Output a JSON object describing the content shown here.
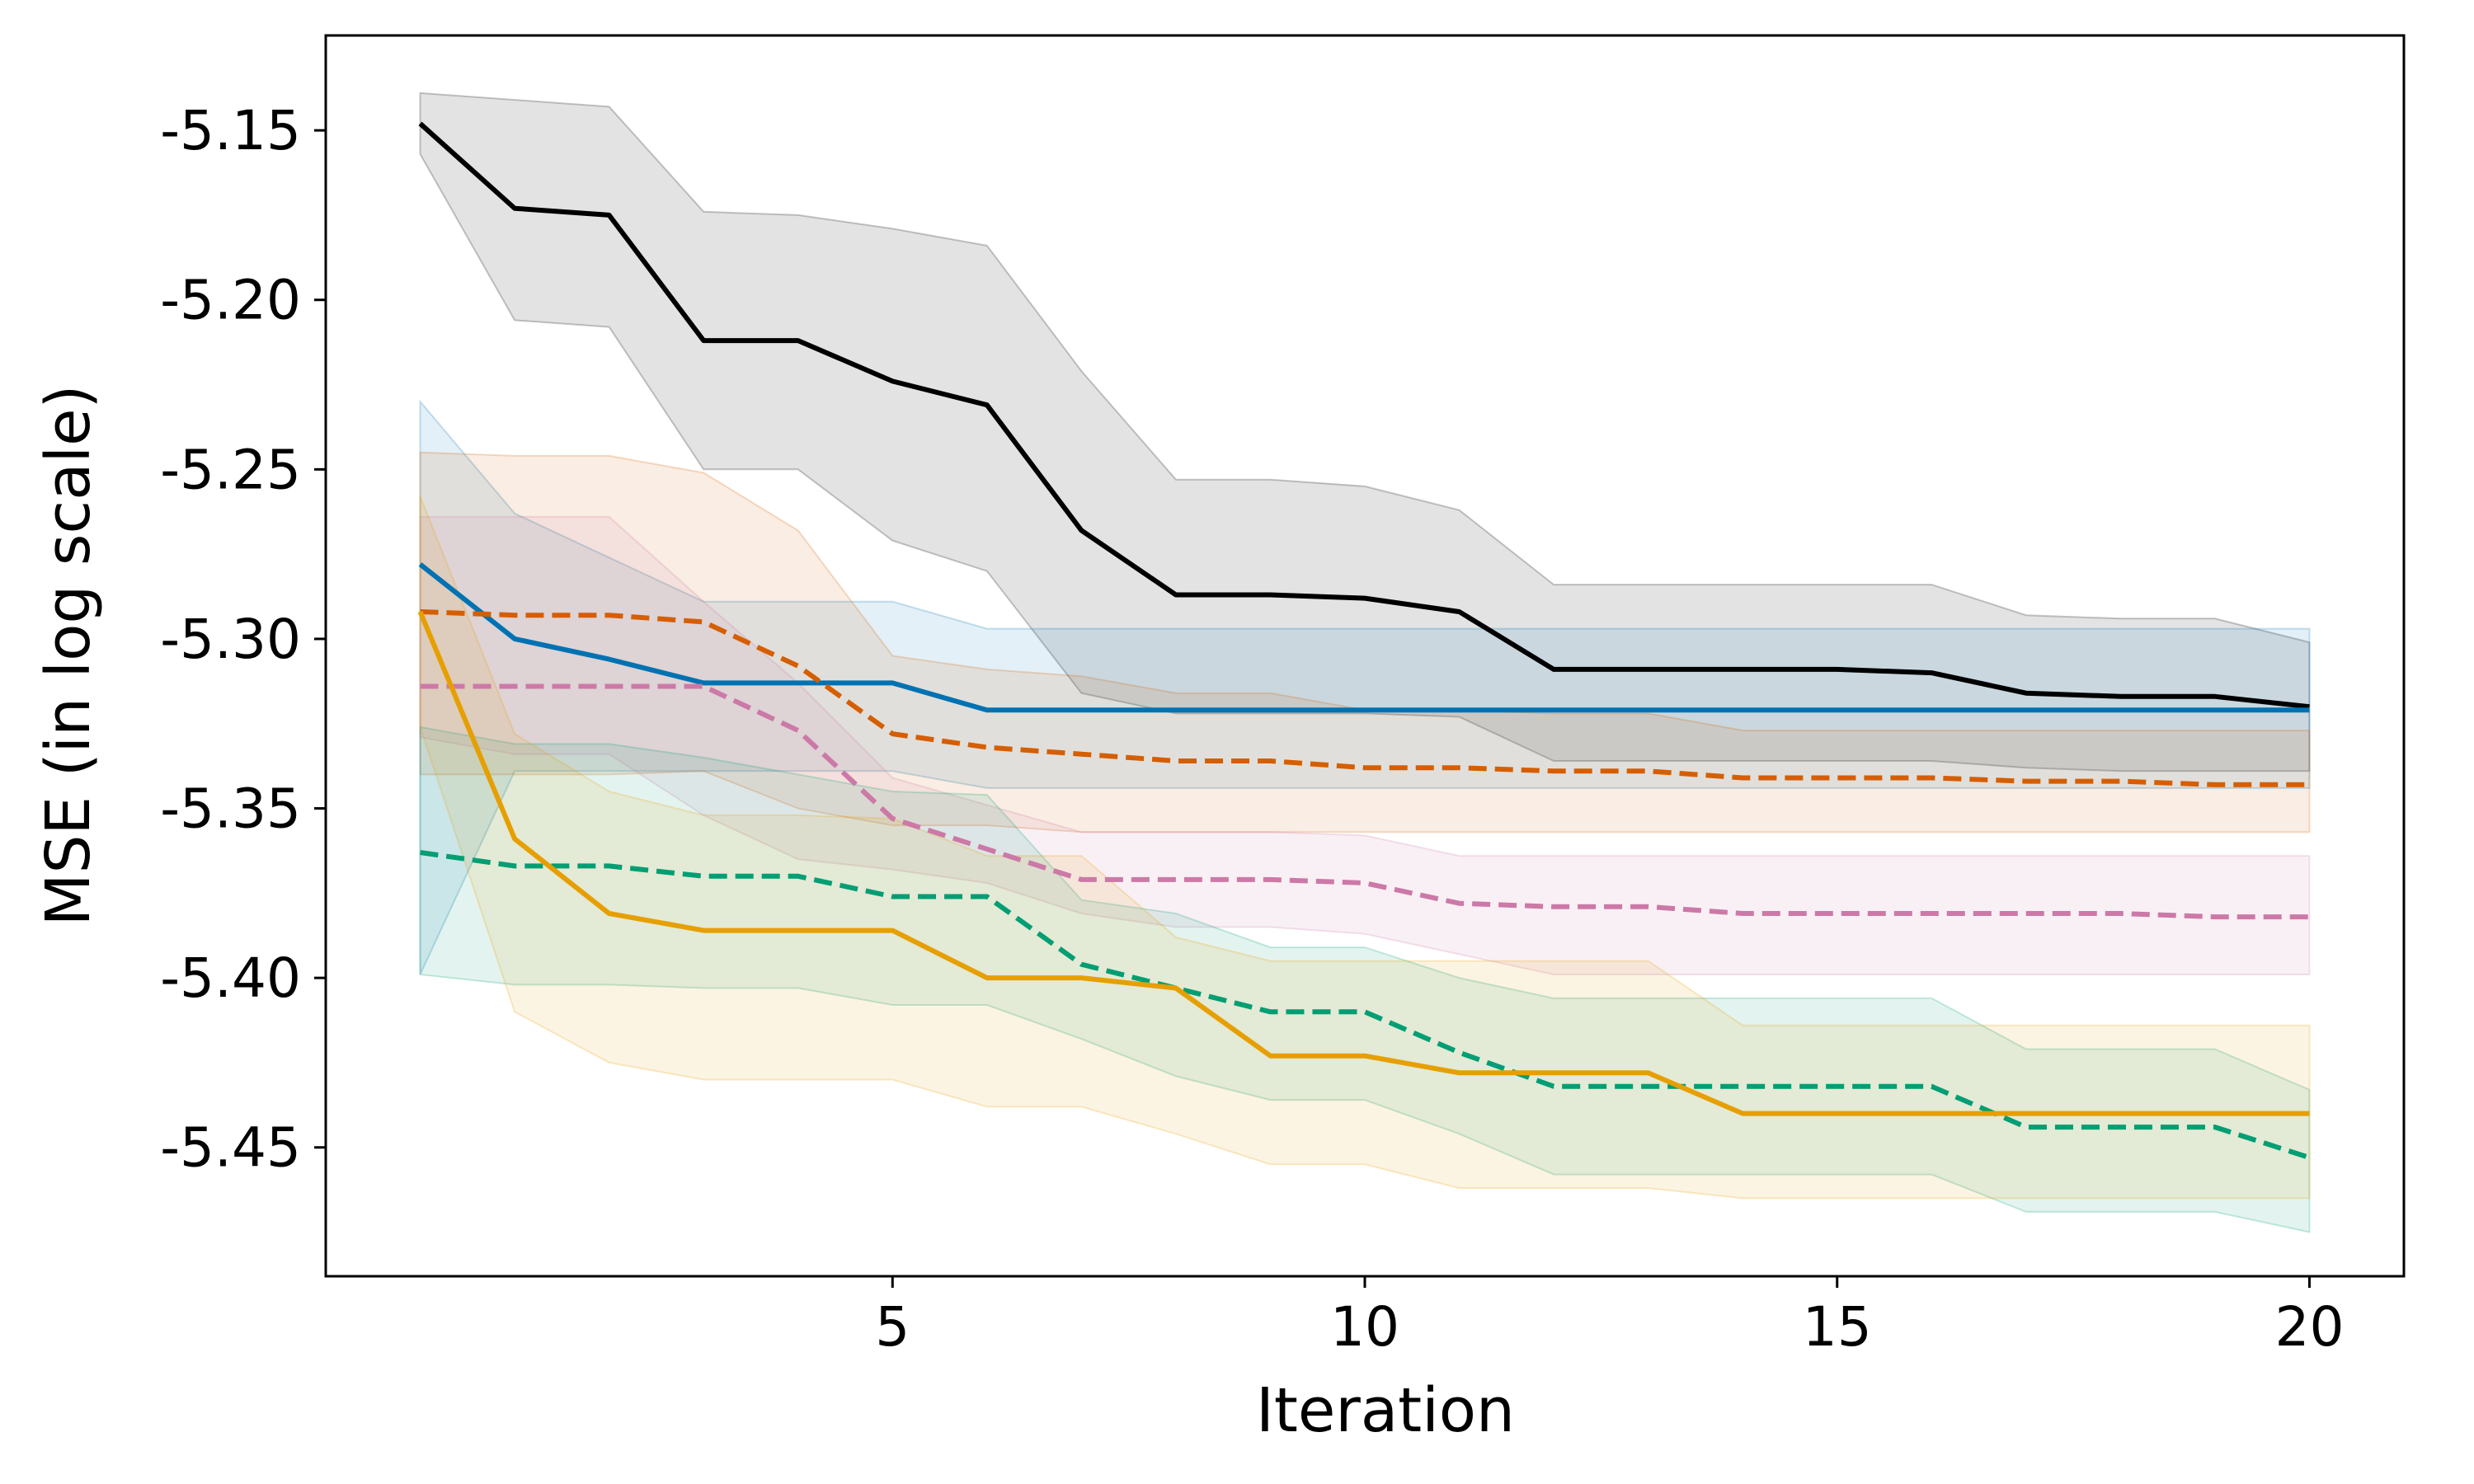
{
  "chart_data": {
    "type": "line",
    "title": "",
    "xlabel": "Iteration",
    "ylabel": "MSE (in log scale)",
    "xlim": [
      -1.0,
      21.0
    ],
    "ylim": [
      -5.488,
      -5.122
    ],
    "xticks": [
      5,
      10,
      15,
      20
    ],
    "xtick_labels": [
      "5",
      "10",
      "15",
      "20"
    ],
    "yticks": [
      -5.45,
      -5.4,
      -5.35,
      -5.3,
      -5.25,
      -5.2,
      -5.15
    ],
    "ytick_labels": [
      "-5.45",
      "-5.40",
      "-5.35",
      "-5.30",
      "-5.25",
      "-5.20",
      "-5.15"
    ],
    "grid": false,
    "x": [
      0,
      1,
      2,
      3,
      4,
      5,
      6,
      7,
      8,
      9,
      10,
      11,
      12,
      13,
      14,
      15,
      16,
      17,
      18,
      19,
      20
    ],
    "series": [
      {
        "name": "black-solid",
        "color": "#000000",
        "dash": "solid",
        "values": [
          -5.148,
          -5.173,
          -5.175,
          -5.212,
          -5.212,
          -5.224,
          -5.231,
          -5.268,
          -5.287,
          -5.287,
          -5.288,
          -5.292,
          -5.309,
          -5.309,
          -5.309,
          -5.309,
          -5.31,
          -5.316,
          -5.317,
          -5.317,
          -5.32
        ],
        "upper": [
          -5.139,
          -5.141,
          -5.143,
          -5.174,
          -5.175,
          -5.179,
          -5.184,
          -5.221,
          -5.253,
          -5.253,
          -5.255,
          -5.262,
          -5.284,
          -5.284,
          -5.284,
          -5.284,
          -5.284,
          -5.293,
          -5.294,
          -5.294,
          -5.301
        ],
        "lower": [
          -5.157,
          -5.206,
          -5.208,
          -5.25,
          -5.25,
          -5.271,
          -5.28,
          -5.316,
          -5.322,
          -5.322,
          -5.322,
          -5.323,
          -5.336,
          -5.336,
          -5.336,
          -5.336,
          -5.336,
          -5.338,
          -5.339,
          -5.339,
          -5.339
        ]
      },
      {
        "name": "blue-solid",
        "color": "#0072b2",
        "dash": "solid",
        "values": [
          -5.278,
          -5.3,
          -5.306,
          -5.313,
          -5.313,
          -5.313,
          -5.321,
          -5.321,
          -5.321,
          -5.321,
          -5.321,
          -5.321,
          -5.321,
          -5.321,
          -5.321,
          -5.321,
          -5.321,
          -5.321,
          -5.321,
          -5.321,
          -5.321
        ],
        "upper": [
          -5.23,
          -5.263,
          -5.276,
          -5.289,
          -5.289,
          -5.289,
          -5.297,
          -5.297,
          -5.297,
          -5.297,
          -5.297,
          -5.297,
          -5.297,
          -5.297,
          -5.297,
          -5.297,
          -5.297,
          -5.297,
          -5.297,
          -5.297,
          -5.297
        ],
        "lower": [
          -5.399,
          -5.339,
          -5.339,
          -5.339,
          -5.339,
          -5.339,
          -5.344,
          -5.344,
          -5.344,
          -5.344,
          -5.344,
          -5.344,
          -5.344,
          -5.344,
          -5.344,
          -5.344,
          -5.344,
          -5.344,
          -5.344,
          -5.344,
          -5.344
        ]
      },
      {
        "name": "orange-dashed",
        "color": "#d55e00",
        "dash": "dashed",
        "values": [
          -5.292,
          -5.293,
          -5.293,
          -5.295,
          -5.308,
          -5.328,
          -5.332,
          -5.334,
          -5.336,
          -5.336,
          -5.338,
          -5.338,
          -5.339,
          -5.339,
          -5.341,
          -5.341,
          -5.341,
          -5.342,
          -5.342,
          -5.343,
          -5.343
        ],
        "upper": [
          -5.245,
          -5.246,
          -5.246,
          -5.251,
          -5.268,
          -5.305,
          -5.309,
          -5.311,
          -5.316,
          -5.316,
          -5.321,
          -5.321,
          -5.322,
          -5.322,
          -5.327,
          -5.327,
          -5.327,
          -5.327,
          -5.327,
          -5.327,
          -5.327
        ],
        "lower": [
          -5.34,
          -5.34,
          -5.34,
          -5.339,
          -5.35,
          -5.355,
          -5.355,
          -5.357,
          -5.357,
          -5.357,
          -5.357,
          -5.357,
          -5.357,
          -5.357,
          -5.357,
          -5.357,
          -5.357,
          -5.357,
          -5.357,
          -5.357,
          -5.357
        ]
      },
      {
        "name": "pink-dashed",
        "color": "#cc79a7",
        "dash": "dashed",
        "values": [
          -5.314,
          -5.314,
          -5.314,
          -5.314,
          -5.327,
          -5.353,
          -5.362,
          -5.371,
          -5.371,
          -5.371,
          -5.372,
          -5.378,
          -5.379,
          -5.379,
          -5.381,
          -5.381,
          -5.381,
          -5.381,
          -5.381,
          -5.382,
          -5.382
        ],
        "upper": [
          -5.264,
          -5.264,
          -5.264,
          -5.289,
          -5.313,
          -5.341,
          -5.349,
          -5.357,
          -5.357,
          -5.357,
          -5.358,
          -5.364,
          -5.364,
          -5.364,
          -5.364,
          -5.364,
          -5.364,
          -5.364,
          -5.364,
          -5.364,
          -5.364
        ],
        "lower": [
          -5.329,
          -5.334,
          -5.334,
          -5.352,
          -5.365,
          -5.368,
          -5.372,
          -5.381,
          -5.385,
          -5.385,
          -5.387,
          -5.393,
          -5.399,
          -5.399,
          -5.399,
          -5.399,
          -5.399,
          -5.399,
          -5.399,
          -5.399,
          -5.399
        ]
      },
      {
        "name": "green-dashed",
        "color": "#009e73",
        "dash": "dashed",
        "values": [
          -5.363,
          -5.367,
          -5.367,
          -5.37,
          -5.37,
          -5.376,
          -5.376,
          -5.396,
          -5.403,
          -5.41,
          -5.41,
          -5.422,
          -5.432,
          -5.432,
          -5.432,
          -5.432,
          -5.432,
          -5.444,
          -5.444,
          -5.444,
          -5.453
        ],
        "upper": [
          -5.326,
          -5.331,
          -5.331,
          -5.335,
          -5.34,
          -5.345,
          -5.346,
          -5.377,
          -5.381,
          -5.391,
          -5.391,
          -5.4,
          -5.406,
          -5.406,
          -5.406,
          -5.406,
          -5.406,
          -5.421,
          -5.421,
          -5.421,
          -5.433
        ],
        "lower": [
          -5.399,
          -5.402,
          -5.402,
          -5.403,
          -5.403,
          -5.408,
          -5.408,
          -5.418,
          -5.429,
          -5.436,
          -5.436,
          -5.446,
          -5.458,
          -5.458,
          -5.458,
          -5.458,
          -5.458,
          -5.469,
          -5.469,
          -5.469,
          -5.475
        ]
      },
      {
        "name": "amber-solid",
        "color": "#e69f00",
        "dash": "solid",
        "values": [
          -5.292,
          -5.359,
          -5.381,
          -5.386,
          -5.386,
          -5.386,
          -5.4,
          -5.4,
          -5.403,
          -5.423,
          -5.423,
          -5.428,
          -5.428,
          -5.428,
          -5.44,
          -5.44,
          -5.44,
          -5.44,
          -5.44,
          -5.44,
          -5.44
        ],
        "upper": [
          -5.258,
          -5.328,
          -5.345,
          -5.352,
          -5.352,
          -5.353,
          -5.364,
          -5.364,
          -5.388,
          -5.395,
          -5.395,
          -5.395,
          -5.395,
          -5.395,
          -5.414,
          -5.414,
          -5.414,
          -5.414,
          -5.414,
          -5.414,
          -5.414
        ],
        "lower": [
          -5.326,
          -5.41,
          -5.425,
          -5.43,
          -5.43,
          -5.43,
          -5.438,
          -5.438,
          -5.446,
          -5.455,
          -5.455,
          -5.462,
          -5.462,
          -5.462,
          -5.465,
          -5.465,
          -5.465,
          -5.465,
          -5.465,
          -5.465,
          -5.465
        ]
      }
    ]
  }
}
